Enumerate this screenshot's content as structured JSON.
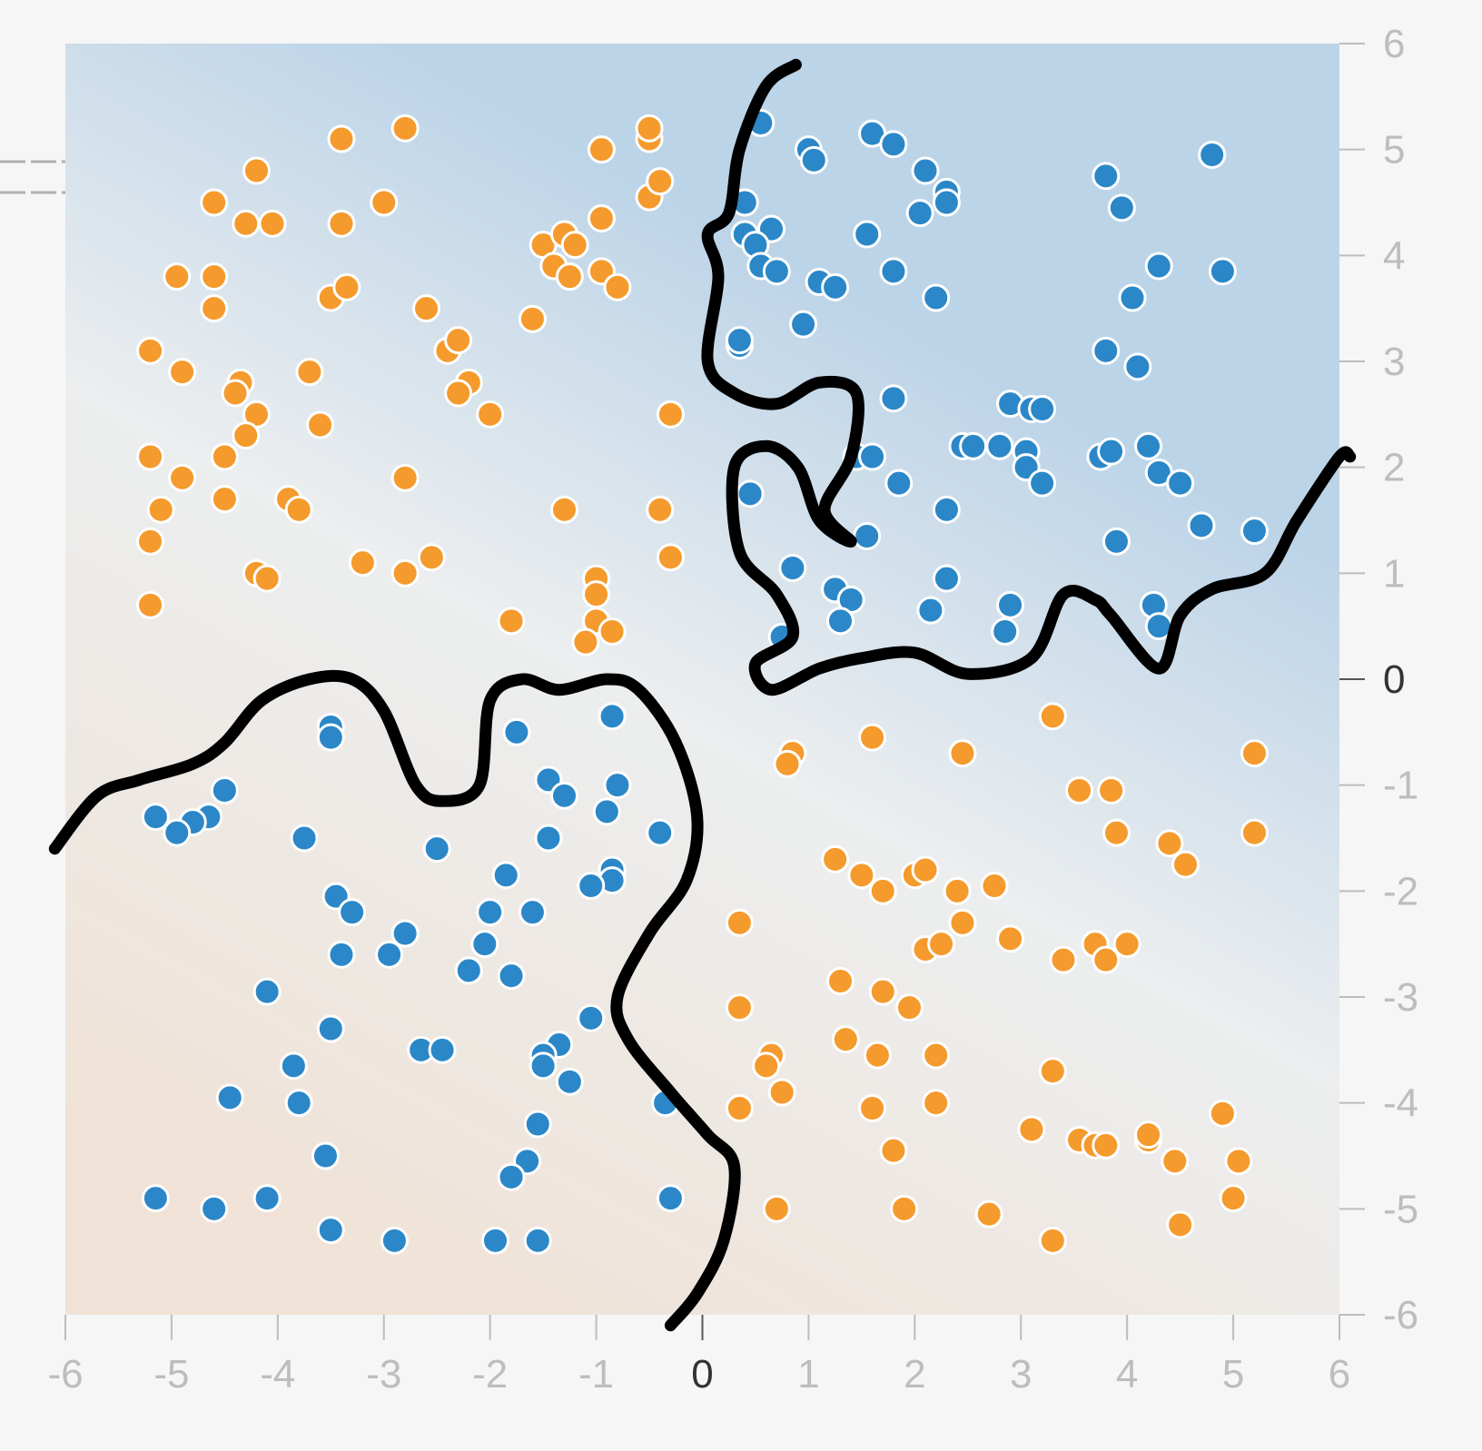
{
  "chart_data": {
    "type": "scatter",
    "title": "",
    "xlabel": "",
    "ylabel": "",
    "xlim": [
      -6,
      6
    ],
    "ylim": [
      -6,
      6
    ],
    "x_ticks": [
      "-6",
      "-5",
      "-4",
      "-3",
      "-2",
      "-1",
      "0",
      "1",
      "2",
      "3",
      "4",
      "5",
      "6"
    ],
    "y_ticks": [
      "6",
      "5",
      "4",
      "3",
      "2",
      "1",
      "0",
      "-1",
      "-2",
      "-3",
      "-4",
      "-5",
      "-6"
    ],
    "background": {
      "positive_color": "#bcd4e8",
      "negative_color": "#f0e2d6",
      "neutral_color": "#eceeef"
    },
    "boundary_color": "#000000",
    "series": [
      {
        "color": "#f59a2c",
        "points": [
          [
            -5.2,
            0.7
          ],
          [
            -5.2,
            1.3
          ],
          [
            -5.1,
            1.6
          ],
          [
            -5.2,
            2.1
          ],
          [
            -4.9,
            1.9
          ],
          [
            -5.2,
            3.1
          ],
          [
            -4.9,
            2.9
          ],
          [
            -4.95,
            3.8
          ],
          [
            -4.6,
            3.8
          ],
          [
            -4.6,
            3.5
          ],
          [
            -4.6,
            4.5
          ],
          [
            -4.3,
            4.3
          ],
          [
            -4.05,
            4.3
          ],
          [
            -4.2,
            4.8
          ],
          [
            -4.35,
            2.8
          ],
          [
            -4.4,
            2.7
          ],
          [
            -4.2,
            2.5
          ],
          [
            -4.3,
            2.3
          ],
          [
            -4.5,
            2.1
          ],
          [
            -4.5,
            1.7
          ],
          [
            -4.2,
            1.0
          ],
          [
            -4.1,
            0.95
          ],
          [
            -3.9,
            1.7
          ],
          [
            -3.8,
            1.6
          ],
          [
            -3.7,
            2.9
          ],
          [
            -3.6,
            2.4
          ],
          [
            -3.4,
            4.3
          ],
          [
            -3.4,
            5.1
          ],
          [
            -3.0,
            4.5
          ],
          [
            -2.8,
            5.2
          ],
          [
            -3.5,
            3.6
          ],
          [
            -3.35,
            3.7
          ],
          [
            -2.8,
            1.9
          ],
          [
            -3.2,
            1.1
          ],
          [
            -2.8,
            1.0
          ],
          [
            -2.55,
            1.15
          ],
          [
            -2.6,
            3.5
          ],
          [
            -2.4,
            3.1
          ],
          [
            -2.3,
            3.2
          ],
          [
            -2.2,
            2.8
          ],
          [
            -2.3,
            2.7
          ],
          [
            -2.0,
            2.5
          ],
          [
            -1.6,
            3.4
          ],
          [
            -1.5,
            4.1
          ],
          [
            -1.3,
            4.2
          ],
          [
            -1.2,
            4.1
          ],
          [
            -1.4,
            3.9
          ],
          [
            -1.25,
            3.8
          ],
          [
            -0.95,
            3.85
          ],
          [
            -0.8,
            3.7
          ],
          [
            -0.95,
            4.35
          ],
          [
            -0.95,
            5.0
          ],
          [
            -0.5,
            5.1
          ],
          [
            -0.5,
            5.2
          ],
          [
            -0.5,
            4.55
          ],
          [
            -0.4,
            4.7
          ],
          [
            -0.3,
            2.5
          ],
          [
            -1.3,
            1.6
          ],
          [
            -0.4,
            1.6
          ],
          [
            -0.3,
            1.15
          ],
          [
            -1.0,
            0.95
          ],
          [
            -1.0,
            0.8
          ],
          [
            -1.0,
            0.55
          ],
          [
            -0.85,
            0.45
          ],
          [
            -1.1,
            0.35
          ],
          [
            -1.8,
            0.55
          ],
          [
            0.85,
            -0.7
          ],
          [
            0.8,
            -0.8
          ],
          [
            1.6,
            -0.55
          ],
          [
            2.45,
            -0.7
          ],
          [
            3.3,
            -0.35
          ],
          [
            5.2,
            -0.7
          ],
          [
            3.55,
            -1.05
          ],
          [
            3.85,
            -1.05
          ],
          [
            3.9,
            -1.45
          ],
          [
            4.4,
            -1.55
          ],
          [
            4.55,
            -1.75
          ],
          [
            5.2,
            -1.45
          ],
          [
            1.25,
            -1.7
          ],
          [
            1.5,
            -1.85
          ],
          [
            1.7,
            -2.0
          ],
          [
            2.0,
            -1.85
          ],
          [
            2.1,
            -1.8
          ],
          [
            2.4,
            -2.0
          ],
          [
            2.75,
            -1.95
          ],
          [
            2.45,
            -2.3
          ],
          [
            2.1,
            -2.55
          ],
          [
            2.25,
            -2.5
          ],
          [
            2.9,
            -2.45
          ],
          [
            3.4,
            -2.65
          ],
          [
            3.7,
            -2.5
          ],
          [
            3.8,
            -2.65
          ],
          [
            4.0,
            -2.5
          ],
          [
            0.35,
            -2.3
          ],
          [
            1.3,
            -2.85
          ],
          [
            1.7,
            -2.95
          ],
          [
            1.95,
            -3.1
          ],
          [
            0.35,
            -3.1
          ],
          [
            0.65,
            -3.55
          ],
          [
            0.6,
            -3.65
          ],
          [
            1.35,
            -3.4
          ],
          [
            1.65,
            -3.55
          ],
          [
            2.2,
            -3.55
          ],
          [
            3.3,
            -3.7
          ],
          [
            0.75,
            -3.9
          ],
          [
            0.35,
            -4.05
          ],
          [
            1.6,
            -4.05
          ],
          [
            2.2,
            -4.0
          ],
          [
            1.8,
            -4.45
          ],
          [
            3.1,
            -4.25
          ],
          [
            3.55,
            -4.35
          ],
          [
            3.7,
            -4.4
          ],
          [
            3.8,
            -4.4
          ],
          [
            4.2,
            -4.35
          ],
          [
            4.2,
            -4.3
          ],
          [
            4.9,
            -4.1
          ],
          [
            4.45,
            -4.55
          ],
          [
            5.05,
            -4.55
          ],
          [
            5.0,
            -4.9
          ],
          [
            4.5,
            -5.15
          ],
          [
            0.7,
            -5.0
          ],
          [
            1.9,
            -5.0
          ],
          [
            2.7,
            -5.05
          ],
          [
            3.3,
            -5.3
          ]
        ]
      },
      {
        "color": "#2b87c8",
        "points": [
          [
            0.55,
            5.25
          ],
          [
            1.0,
            5.0
          ],
          [
            1.05,
            4.9
          ],
          [
            1.6,
            5.15
          ],
          [
            1.8,
            5.05
          ],
          [
            2.1,
            4.8
          ],
          [
            2.3,
            4.6
          ],
          [
            2.3,
            4.5
          ],
          [
            0.4,
            4.5
          ],
          [
            0.4,
            4.2
          ],
          [
            0.65,
            4.25
          ],
          [
            0.5,
            4.1
          ],
          [
            0.55,
            3.9
          ],
          [
            0.7,
            3.85
          ],
          [
            1.1,
            3.75
          ],
          [
            1.25,
            3.7
          ],
          [
            1.55,
            4.2
          ],
          [
            2.05,
            4.4
          ],
          [
            1.8,
            3.85
          ],
          [
            2.2,
            3.6
          ],
          [
            0.95,
            3.35
          ],
          [
            0.35,
            3.15
          ],
          [
            0.35,
            3.2
          ],
          [
            1.8,
            2.65
          ],
          [
            2.9,
            2.6
          ],
          [
            3.1,
            2.55
          ],
          [
            3.2,
            2.55
          ],
          [
            3.8,
            3.1
          ],
          [
            3.75,
            2.1
          ],
          [
            3.85,
            2.15
          ],
          [
            4.1,
            2.95
          ],
          [
            4.05,
            3.6
          ],
          [
            4.3,
            3.9
          ],
          [
            4.9,
            3.85
          ],
          [
            3.8,
            4.75
          ],
          [
            3.95,
            4.45
          ],
          [
            4.8,
            4.95
          ],
          [
            1.45,
            2.1
          ],
          [
            1.6,
            2.1
          ],
          [
            2.45,
            2.2
          ],
          [
            2.55,
            2.2
          ],
          [
            2.8,
            2.2
          ],
          [
            3.05,
            2.15
          ],
          [
            3.05,
            2.0
          ],
          [
            3.2,
            1.85
          ],
          [
            4.2,
            2.2
          ],
          [
            4.3,
            1.95
          ],
          [
            4.5,
            1.85
          ],
          [
            4.7,
            1.45
          ],
          [
            5.2,
            1.4
          ],
          [
            1.85,
            1.85
          ],
          [
            2.3,
            1.6
          ],
          [
            0.45,
            1.75
          ],
          [
            1.55,
            1.35
          ],
          [
            0.85,
            1.05
          ],
          [
            1.25,
            0.85
          ],
          [
            1.4,
            0.75
          ],
          [
            1.3,
            0.55
          ],
          [
            2.3,
            0.95
          ],
          [
            2.15,
            0.65
          ],
          [
            2.9,
            0.7
          ],
          [
            2.85,
            0.45
          ],
          [
            3.9,
            1.3
          ],
          [
            4.25,
            0.7
          ],
          [
            4.3,
            0.5
          ],
          [
            0.75,
            0.4
          ],
          [
            -3.5,
            -0.45
          ],
          [
            -3.5,
            -0.55
          ],
          [
            -1.75,
            -0.5
          ],
          [
            -0.85,
            -0.35
          ],
          [
            -4.5,
            -1.05
          ],
          [
            -4.65,
            -1.3
          ],
          [
            -4.8,
            -1.35
          ],
          [
            -4.95,
            -1.45
          ],
          [
            -5.15,
            -1.3
          ],
          [
            -3.75,
            -1.5
          ],
          [
            -1.45,
            -0.95
          ],
          [
            -1.3,
            -1.1
          ],
          [
            -0.8,
            -1.0
          ],
          [
            -0.9,
            -1.25
          ],
          [
            -1.45,
            -1.5
          ],
          [
            -2.5,
            -1.6
          ],
          [
            -0.4,
            -1.45
          ],
          [
            -1.85,
            -1.85
          ],
          [
            -0.85,
            -1.8
          ],
          [
            -0.85,
            -1.9
          ],
          [
            -1.05,
            -1.95
          ],
          [
            -3.45,
            -2.05
          ],
          [
            -3.3,
            -2.2
          ],
          [
            -2.8,
            -2.4
          ],
          [
            -2.0,
            -2.2
          ],
          [
            -1.6,
            -2.2
          ],
          [
            -3.4,
            -2.6
          ],
          [
            -2.95,
            -2.6
          ],
          [
            -2.05,
            -2.5
          ],
          [
            -2.2,
            -2.75
          ],
          [
            -1.8,
            -2.8
          ],
          [
            -4.1,
            -2.95
          ],
          [
            -3.5,
            -3.3
          ],
          [
            -1.05,
            -3.2
          ],
          [
            -2.65,
            -3.5
          ],
          [
            -2.45,
            -3.5
          ],
          [
            -1.35,
            -3.45
          ],
          [
            -1.5,
            -3.55
          ],
          [
            -1.5,
            -3.65
          ],
          [
            -1.25,
            -3.8
          ],
          [
            -3.85,
            -3.65
          ],
          [
            -4.45,
            -3.95
          ],
          [
            -3.8,
            -4.0
          ],
          [
            -1.55,
            -4.2
          ],
          [
            -3.55,
            -4.5
          ],
          [
            -1.65,
            -4.55
          ],
          [
            -1.8,
            -4.7
          ],
          [
            -0.35,
            -4.0
          ],
          [
            -5.15,
            -4.9
          ],
          [
            -4.6,
            -5.0
          ],
          [
            -4.1,
            -4.9
          ],
          [
            -3.5,
            -5.2
          ],
          [
            -2.9,
            -5.3
          ],
          [
            -1.95,
            -5.3
          ],
          [
            -1.55,
            -5.3
          ],
          [
            -0.3,
            -4.9
          ]
        ]
      }
    ],
    "decision_boundaries": [
      [
        [
          0.88,
          5.8
        ],
        [
          0.6,
          5.6
        ],
        [
          0.35,
          5.0
        ],
        [
          0.25,
          4.4
        ],
        [
          0.05,
          4.2
        ],
        [
          0.15,
          3.8
        ],
        [
          0.05,
          3.0
        ],
        [
          0.3,
          2.7
        ],
        [
          0.7,
          2.6
        ],
        [
          1.1,
          2.8
        ],
        [
          1.45,
          2.7
        ],
        [
          1.4,
          2.1
        ],
        [
          1.15,
          1.6
        ],
        [
          1.4,
          1.3
        ],
        [
          1.1,
          1.5
        ],
        [
          0.9,
          2.0
        ],
        [
          0.6,
          2.2
        ],
        [
          0.3,
          2.0
        ],
        [
          0.35,
          1.2
        ],
        [
          0.7,
          0.8
        ],
        [
          0.85,
          0.4
        ],
        [
          0.5,
          0.15
        ],
        [
          0.65,
          -0.1
        ],
        [
          1.1,
          0.1
        ],
        [
          1.5,
          0.2
        ],
        [
          2.0,
          0.25
        ],
        [
          2.5,
          0.05
        ],
        [
          3.1,
          0.2
        ],
        [
          3.4,
          0.8
        ],
        [
          3.7,
          0.75
        ],
        [
          3.85,
          0.6
        ],
        [
          4.3,
          0.1
        ],
        [
          4.5,
          0.6
        ],
        [
          4.8,
          0.85
        ],
        [
          5.3,
          1.0
        ],
        [
          5.6,
          1.5
        ],
        [
          6.0,
          2.1
        ],
        [
          6.1,
          2.1
        ]
      ],
      [
        [
          -6.1,
          -1.6
        ],
        [
          -5.7,
          -1.1
        ],
        [
          -5.3,
          -0.95
        ],
        [
          -4.8,
          -0.8
        ],
        [
          -4.5,
          -0.6
        ],
        [
          -4.15,
          -0.2
        ],
        [
          -3.7,
          0.0
        ],
        [
          -3.3,
          0.0
        ],
        [
          -3.0,
          -0.3
        ],
        [
          -2.7,
          -1.0
        ],
        [
          -2.45,
          -1.15
        ],
        [
          -2.1,
          -1.0
        ],
        [
          -2.0,
          -0.2
        ],
        [
          -1.7,
          0.0
        ],
        [
          -1.35,
          -0.1
        ],
        [
          -0.9,
          0.0
        ],
        [
          -0.6,
          -0.1
        ],
        [
          -0.25,
          -0.6
        ],
        [
          -0.05,
          -1.3
        ],
        [
          -0.15,
          -1.9
        ],
        [
          -0.5,
          -2.4
        ],
        [
          -0.8,
          -3.0
        ],
        [
          -0.7,
          -3.4
        ],
        [
          -0.3,
          -3.9
        ],
        [
          0.05,
          -4.3
        ],
        [
          0.3,
          -4.6
        ],
        [
          0.2,
          -5.3
        ],
        [
          -0.05,
          -5.8
        ],
        [
          -0.3,
          -6.1
        ]
      ]
    ]
  }
}
